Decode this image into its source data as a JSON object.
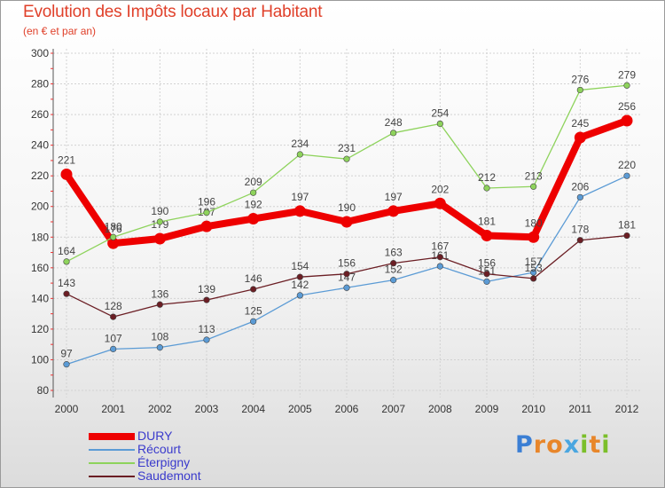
{
  "header": {
    "title": "Evolution des Impôts locaux par Habitant",
    "subtitle": "(en € et par an)"
  },
  "logo": {
    "text": "Proxiti"
  },
  "chart_data": {
    "type": "line",
    "title": "Evolution des Impôts locaux par Habitant",
    "subtitle": "(en € et par an)",
    "x": [
      "2000",
      "2001",
      "2002",
      "2003",
      "2004",
      "2005",
      "2006",
      "2007",
      "2008",
      "2009",
      "2010",
      "2011",
      "2012"
    ],
    "ylim": [
      80,
      300
    ],
    "yticks": [
      80,
      100,
      120,
      140,
      160,
      180,
      200,
      220,
      240,
      260,
      280,
      300
    ],
    "grid": true,
    "legend_position": "bottom-left",
    "series": [
      {
        "name": "DURY",
        "color": "#ee0000",
        "values": [
          221,
          176,
          179,
          187,
          192,
          197,
          190,
          197,
          202,
          181,
          180,
          245,
          256
        ]
      },
      {
        "name": "Récourt",
        "color": "#5b9bd5",
        "values": [
          97,
          107,
          108,
          113,
          125,
          142,
          147,
          152,
          161,
          151,
          157,
          206,
          220
        ]
      },
      {
        "name": "Éterpigny",
        "color": "#8ed35c",
        "values": [
          164,
          180,
          190,
          196,
          209,
          234,
          231,
          248,
          254,
          212,
          213,
          276,
          279
        ]
      },
      {
        "name": "Saudemont",
        "color": "#6b1e24",
        "values": [
          143,
          128,
          136,
          139,
          146,
          154,
          156,
          163,
          167,
          156,
          153,
          178,
          181
        ]
      }
    ]
  }
}
